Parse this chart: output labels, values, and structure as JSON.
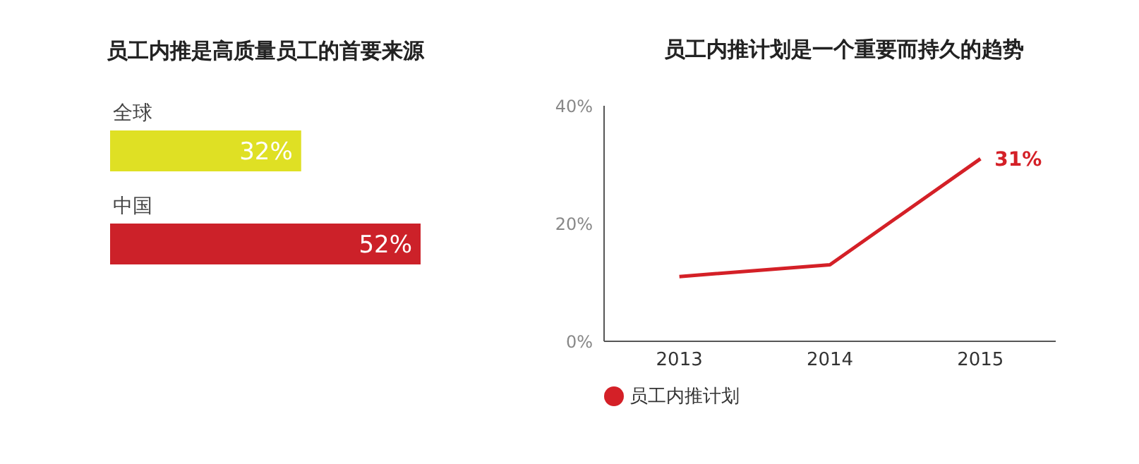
{
  "chart_data": [
    {
      "type": "bar",
      "title": "员工内推是高质量员工的首要来源",
      "orientation": "horizontal",
      "categories": [
        "全球",
        "中国"
      ],
      "values": [
        32,
        52
      ],
      "colors": [
        "#dfe024",
        "#cc2129"
      ],
      "value_labels": [
        "32%",
        "52%"
      ]
    },
    {
      "type": "line",
      "title": "员工内推计划是一个重要而持久的趋势",
      "categories": [
        "2013",
        "2014",
        "2015"
      ],
      "ylim": [
        0,
        40
      ],
      "yticks": [
        {
          "value": 0,
          "label": "0%"
        },
        {
          "value": 20,
          "label": "20%"
        },
        {
          "value": 40,
          "label": "40%"
        }
      ],
      "legend": "bottom left",
      "marker": "none",
      "series": [
        {
          "name": "员工内推计划",
          "color": "#d42027",
          "values": [
            11,
            13,
            31
          ],
          "value_labels": [
            null,
            null,
            "31%"
          ]
        }
      ]
    }
  ]
}
